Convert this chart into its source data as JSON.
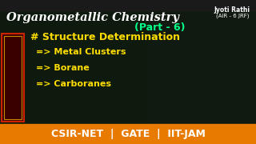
{
  "title": "Organometallic Chemistry",
  "subtitle": "(Part - 6)",
  "instructor": "Jyoti Rathi",
  "rank": "(AIR - 6 JRF)",
  "hash_heading": "# Structure Determination",
  "bullets": [
    "=> Metal Clusters",
    "=> Borane",
    "=> Carboranes"
  ],
  "footer": "CSIR-NET  |  GATE  |  IIT-JAM",
  "bg_color": "#1a1a1a",
  "dark_green_bg": "#1a2a1a",
  "title_color": "#ffffff",
  "subtitle_color": "#00ff88",
  "heading_color": "#ffdd00",
  "bullet_color": "#ffdd00",
  "footer_bg": "#e87a00",
  "footer_text_color": "#ffffff",
  "red_accent": "#cc2200",
  "border_color": "#cc2200"
}
